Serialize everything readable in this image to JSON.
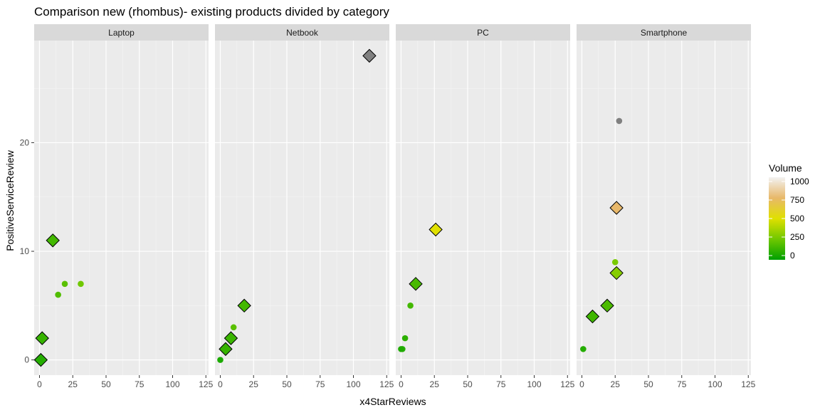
{
  "chart_data": {
    "type": "scatter",
    "title": "Comparison new (rhombus)- existing products divided by category",
    "xlabel": "x4StarReviews",
    "ylabel": "PositiveServiceReview",
    "xlim": [
      -4,
      127
    ],
    "ylim": [
      -1.4,
      29.4
    ],
    "x_ticks": [
      0,
      25,
      50,
      75,
      100,
      125
    ],
    "y_ticks": [
      0,
      10,
      20
    ],
    "grid": true,
    "facet_order": [
      "Laptop",
      "Netbook",
      "PC",
      "Smartphone"
    ],
    "legend": {
      "title": "Volume",
      "position": "right",
      "ticks": [
        0,
        250,
        500,
        750,
        1000
      ],
      "gradient_colors": [
        "#00a000",
        "#70c800",
        "#e0e000",
        "#e8b86a",
        "#f2f2f2"
      ]
    },
    "encoding": {
      "diamond": "new product",
      "circle": "existing product"
    },
    "facets": [
      {
        "name": "Laptop",
        "points": [
          {
            "x": 10,
            "y": 11,
            "volume": 150,
            "shape": "diamond"
          },
          {
            "x": 2,
            "y": 2,
            "volume": 120,
            "shape": "diamond"
          },
          {
            "x": 1,
            "y": 0,
            "volume": 80,
            "shape": "diamond"
          },
          {
            "x": 19,
            "y": 7,
            "volume": 200,
            "shape": "circle"
          },
          {
            "x": 31,
            "y": 7,
            "volume": 250,
            "shape": "circle"
          },
          {
            "x": 14,
            "y": 6,
            "volume": 180,
            "shape": "circle"
          }
        ]
      },
      {
        "name": "Netbook",
        "points": [
          {
            "x": 112,
            "y": 28,
            "volume": null,
            "shape": "diamond"
          },
          {
            "x": 18,
            "y": 5,
            "volume": 150,
            "shape": "diamond"
          },
          {
            "x": 8,
            "y": 2,
            "volume": 130,
            "shape": "diamond"
          },
          {
            "x": 4,
            "y": 1,
            "volume": 120,
            "shape": "diamond"
          },
          {
            "x": 10,
            "y": 3,
            "volume": 200,
            "shape": "circle"
          },
          {
            "x": 0,
            "y": 0,
            "volume": 60,
            "shape": "circle"
          }
        ]
      },
      {
        "name": "PC",
        "points": [
          {
            "x": 26,
            "y": 12,
            "volume": 500,
            "shape": "diamond"
          },
          {
            "x": 11,
            "y": 7,
            "volume": 160,
            "shape": "diamond"
          },
          {
            "x": 7,
            "y": 5,
            "volume": 150,
            "shape": "circle"
          },
          {
            "x": 3,
            "y": 2,
            "volume": 100,
            "shape": "circle"
          },
          {
            "x": 1,
            "y": 1,
            "volume": 80,
            "shape": "circle"
          },
          {
            "x": 0,
            "y": 1,
            "volume": 70,
            "shape": "circle"
          }
        ]
      },
      {
        "name": "Smartphone",
        "points": [
          {
            "x": 28,
            "y": 22,
            "volume": null,
            "shape": "circle"
          },
          {
            "x": 26,
            "y": 14,
            "volume": 750,
            "shape": "diamond"
          },
          {
            "x": 25,
            "y": 9,
            "volume": 270,
            "shape": "circle"
          },
          {
            "x": 26,
            "y": 8,
            "volume": 300,
            "shape": "diamond"
          },
          {
            "x": 19,
            "y": 5,
            "volume": 170,
            "shape": "diamond"
          },
          {
            "x": 8,
            "y": 4,
            "volume": 140,
            "shape": "diamond"
          },
          {
            "x": 1,
            "y": 1,
            "volume": 80,
            "shape": "circle"
          }
        ]
      }
    ],
    "na_color": "#808080"
  }
}
